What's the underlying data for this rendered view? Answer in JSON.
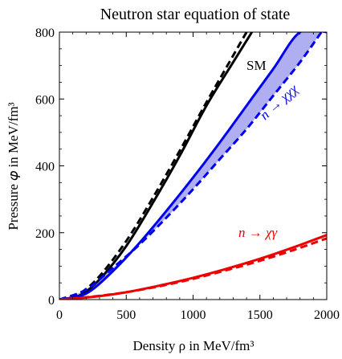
{
  "chart_data": {
    "type": "line",
    "title": "Neutron star equation of state",
    "xlabel": "Density ρ in MeV/fm³",
    "ylabel": "Pressure 𝜑 in MeV/fm³",
    "xlim": [
      0,
      2000
    ],
    "ylim": [
      0,
      800
    ],
    "x_ticks": [
      "0",
      "500",
      "1000",
      "1500",
      "2000"
    ],
    "y_ticks": [
      "0",
      "200",
      "400",
      "600",
      "800"
    ],
    "grid": false,
    "legend": "none",
    "annotations": [
      "SM",
      "n → χχχ",
      "n → χγ"
    ],
    "series": [
      {
        "color": "#000000",
        "style": "solid",
        "x": [
          0,
          150,
          300,
          500,
          700,
          900,
          1100,
          1300,
          1440
        ],
        "y": [
          0,
          12,
          60,
          160,
          290,
          430,
          580,
          710,
          800
        ]
      },
      {
        "color": "#000000",
        "style": "dashed",
        "x": [
          0,
          150,
          300,
          500,
          700,
          900,
          1100,
          1300,
          1400
        ],
        "y": [
          0,
          18,
          70,
          175,
          305,
          445,
          590,
          730,
          800
        ]
      },
      {
        "color": "#0000ee",
        "style": "solid",
        "x": [
          0,
          200,
          400,
          600,
          800,
          1000,
          1200,
          1400,
          1600,
          1800,
          2000
        ],
        "y": [
          0,
          18,
          85,
          170,
          265,
          365,
          470,
          580,
          690,
          800,
          800
        ]
      },
      {
        "color": "#0000ee",
        "style": "dashed",
        "x": [
          0,
          200,
          400,
          600,
          800,
          1000,
          1200,
          1400,
          1600,
          1800,
          1960
        ],
        "y": [
          0,
          30,
          95,
          165,
          245,
          330,
          420,
          510,
          610,
          710,
          800
        ]
      },
      {
        "color": "#ee0000",
        "style": "solid",
        "x": [
          0,
          250,
          500,
          750,
          1000,
          1250,
          1500,
          1750,
          2000
        ],
        "y": [
          0,
          8,
          22,
          42,
          65,
          92,
          122,
          156,
          193
        ]
      },
      {
        "color": "#ee0000",
        "style": "dashed",
        "x": [
          0,
          250,
          500,
          750,
          1000,
          1250,
          1500,
          1750,
          2000
        ],
        "y": [
          0,
          9,
          22,
          40,
          62,
          88,
          116,
          148,
          183
        ]
      }
    ],
    "bands": [
      {
        "color": "#aeaef0",
        "upper_series": 2,
        "lower_series": 3
      }
    ],
    "colors": {
      "sm": "#000000",
      "xxx": "#0000ee",
      "xgamma": "#ee0000",
      "band_fill": "#aeaef0"
    }
  }
}
